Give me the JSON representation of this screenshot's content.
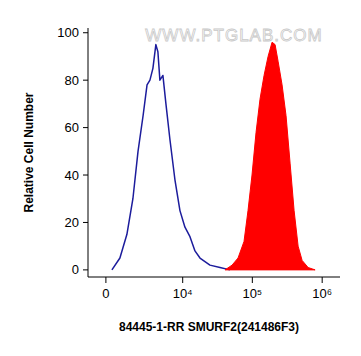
{
  "chart_data": {
    "type": "histogram",
    "x_label": "84445-1-RR SMURF2(241486F3)",
    "y_label": "Relative Cell Number",
    "annotations": [
      "WWW.PTGLAB.COM"
    ],
    "log": "x",
    "grid": false,
    "xlim": [
      -1000,
      1800000
    ],
    "xticks": [
      0,
      {
        "value": 10000,
        "label": "10⁴"
      },
      {
        "value": 100000,
        "label": "10⁵"
      },
      {
        "value": 1000000,
        "label": "10⁶"
      }
    ],
    "ylim": [
      -3,
      102
    ],
    "yticks": [
      0,
      20,
      40,
      60,
      80,
      100
    ],
    "series": [
      {
        "type": "line",
        "color": "#1c1c9c",
        "x": [
          319,
          766,
          1200,
          1621,
          2030,
          2490,
          2900,
          3230,
          3600,
          4000,
          4300,
          4610,
          5120,
          5680,
          6510,
          7710,
          9120,
          10780,
          12740,
          15040,
          17760,
          24700,
          34400,
          47800
        ],
        "values": [
          0,
          5,
          15,
          30,
          50,
          65,
          78,
          80,
          85,
          95,
          92,
          80,
          82,
          70,
          55,
          38,
          25,
          18,
          14,
          8,
          5,
          2,
          1,
          0
        ]
      },
      {
        "type": "area",
        "color": "#ff0000",
        "x": [
          40600,
          51200,
          62400,
          76000,
          86700,
          98900,
          113000,
          128800,
          147200,
          168000,
          191700,
          211700,
          233600,
          266700,
          304000,
          347200,
          396300,
          452300,
          516200,
          629000,
          792000
        ],
        "values": [
          0,
          2,
          5,
          12,
          25,
          40,
          58,
          72,
          82,
          90,
          96,
          95,
          88,
          78,
          65,
          45,
          25,
          10,
          4,
          1,
          0
        ]
      }
    ]
  }
}
